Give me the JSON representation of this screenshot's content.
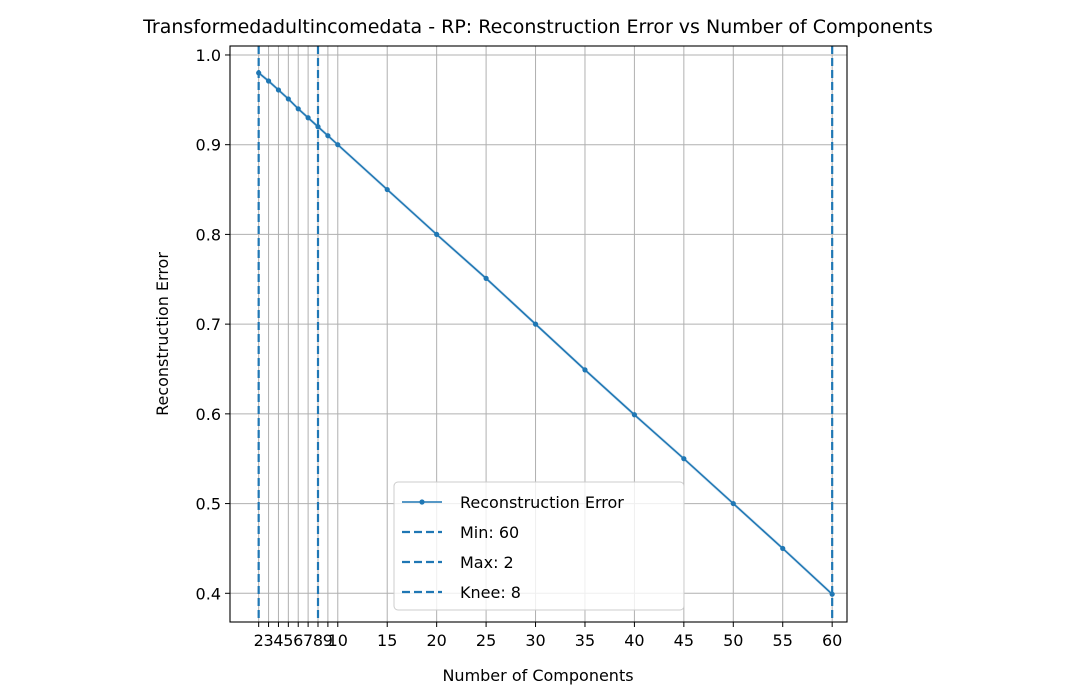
{
  "chart_data": {
    "type": "line",
    "title": "Transformedadultincomedata - RP: Reconstruction Error vs Number of Components",
    "xlabel": "Number of Components",
    "ylabel": "Reconstruction Error",
    "x_ticks": [
      2,
      3,
      4,
      5,
      6,
      7,
      8,
      9,
      10,
      15,
      20,
      25,
      30,
      35,
      40,
      45,
      50,
      55,
      60
    ],
    "x_tick_labels": [
      "2",
      "3",
      "4",
      "5",
      "6",
      "7",
      "8",
      "9",
      "10",
      "15",
      "20",
      "25",
      "30",
      "35",
      "40",
      "45",
      "50",
      "55",
      "60"
    ],
    "y_ticks": [
      0.4,
      0.5,
      0.6,
      0.7,
      0.8,
      0.9,
      1.0
    ],
    "y_tick_labels": [
      "0.4",
      "0.5",
      "0.6",
      "0.7",
      "0.8",
      "0.9",
      "1.0"
    ],
    "xlim": [
      -0.9,
      61.5
    ],
    "ylim": [
      0.368,
      1.01
    ],
    "grid": true,
    "legend_placement": "bottom-center",
    "series": [
      {
        "name": "Reconstruction Error",
        "color": "#1f77b4",
        "x": [
          2,
          3,
          4,
          5,
          6,
          7,
          8,
          9,
          10,
          15,
          20,
          25,
          30,
          35,
          40,
          45,
          50,
          55,
          60
        ],
        "y": [
          0.98,
          0.971,
          0.961,
          0.951,
          0.94,
          0.93,
          0.92,
          0.91,
          0.9,
          0.85,
          0.8,
          0.751,
          0.7,
          0.649,
          0.599,
          0.55,
          0.5,
          0.45,
          0.399
        ]
      }
    ],
    "vlines": [
      {
        "name": "Min: 60",
        "x": 60,
        "color": "#1f77b4",
        "style": "dashed"
      },
      {
        "name": "Max: 2",
        "x": 2,
        "color": "#1f77b4",
        "style": "dashed"
      },
      {
        "name": "Knee: 8",
        "x": 8,
        "color": "#1f77b4",
        "style": "dashed"
      }
    ]
  }
}
